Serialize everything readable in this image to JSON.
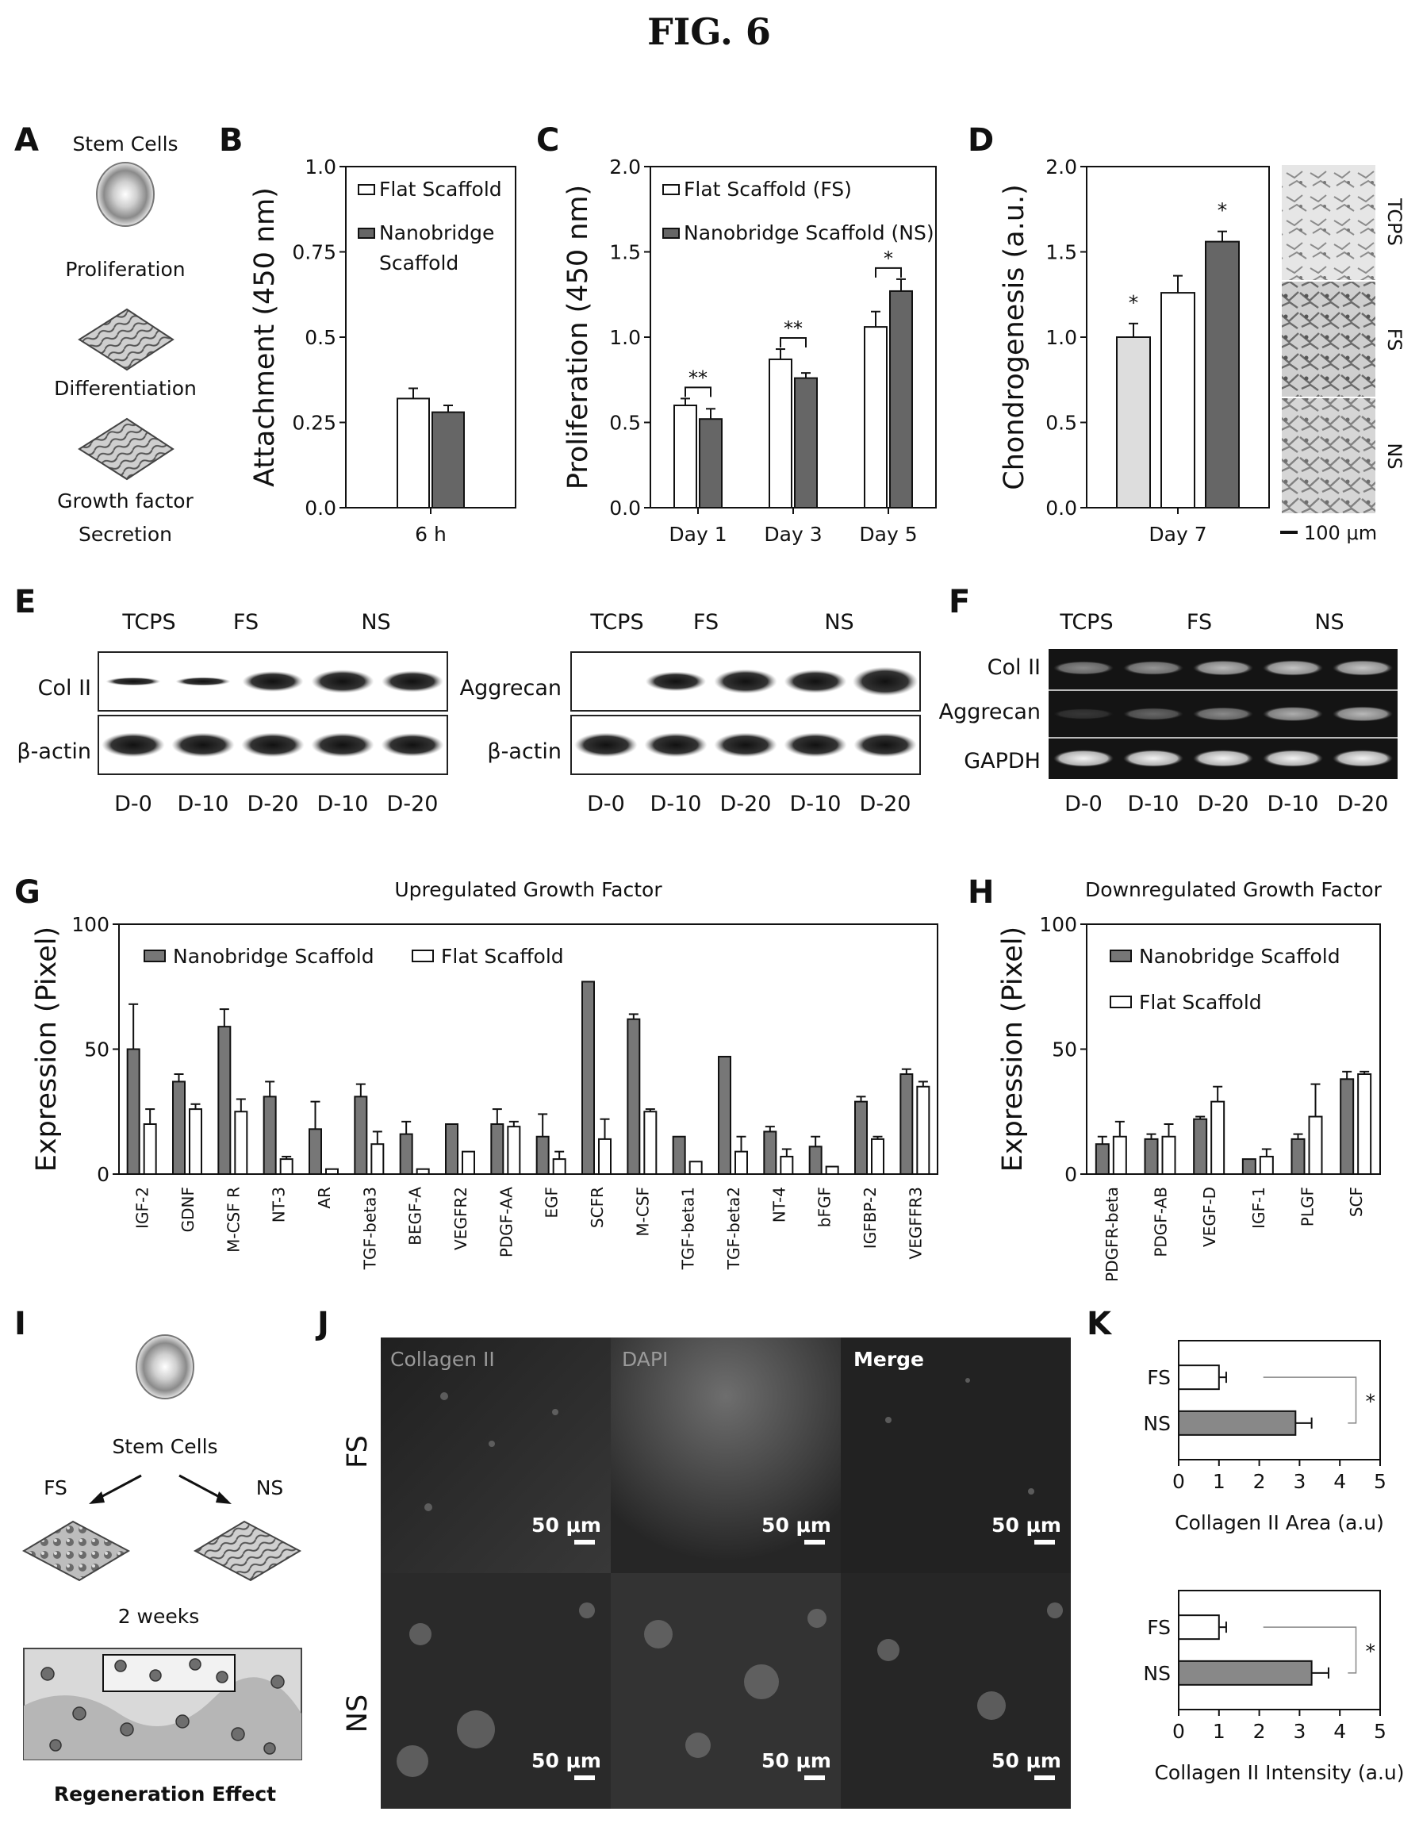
{
  "figure_title": "FIG. 6",
  "panels": {
    "A": {
      "letter": "A",
      "steps": [
        "Stem Cells",
        "Proliferation",
        "Differentiation",
        "Growth factor",
        "Secretion"
      ]
    },
    "E": {
      "letter": "E",
      "groups": [
        "TCPS",
        "FS",
        "NS"
      ],
      "rows_left": [
        "Col II",
        "β-actin"
      ],
      "rows_right": [
        "Aggrecan",
        "β-actin"
      ],
      "lanes": [
        "D-0",
        "D-10",
        "D-20",
        "D-10",
        "D-20"
      ]
    },
    "F": {
      "letter": "F",
      "groups": [
        "TCPS",
        "FS",
        "NS"
      ],
      "rows": [
        "Col II",
        "Aggrecan",
        "GAPDH"
      ],
      "lanes": [
        "D-0",
        "D-10",
        "D-20",
        "D-10",
        "D-20"
      ]
    },
    "I": {
      "letter": "I",
      "stem": "Stem Cells",
      "fs": "FS",
      "ns": "NS",
      "duration": "2 weeks",
      "caption": "Regeneration Effect"
    },
    "J": {
      "letter": "J",
      "channels": [
        "Collagen II",
        "DAPI",
        "Merge"
      ],
      "rows": [
        "FS",
        "NS"
      ],
      "scale": "50 μm"
    },
    "D_image": {
      "labels": [
        "TCPS",
        "FS",
        "NS"
      ],
      "scale": "100 μm"
    }
  },
  "chart_data": [
    {
      "id": "B",
      "letter": "B",
      "type": "bar",
      "categories": [
        "6 h"
      ],
      "series": [
        {
          "name": "Flat Scaffold",
          "values": [
            0.32
          ],
          "errors": [
            0.03
          ],
          "color": "#ffffff"
        },
        {
          "name": "Nanobridge Scaffold",
          "values": [
            0.28
          ],
          "errors": [
            0.02
          ],
          "color": "#666666"
        }
      ],
      "legend": [
        "Flat Scaffold",
        "Nanobridge",
        "Scaffold"
      ],
      "ylabel": "Attachment (450 nm)",
      "ylim": [
        0,
        1.0
      ],
      "yticks": [
        "0.0",
        "0.25",
        "0.5",
        "0.75",
        "1.0"
      ],
      "legend_position": "top-left"
    },
    {
      "id": "C",
      "letter": "C",
      "type": "bar",
      "categories": [
        "Day 1",
        "Day 3",
        "Day 5"
      ],
      "series": [
        {
          "name": "Flat Scaffold (FS)",
          "values": [
            0.6,
            0.87,
            1.06
          ],
          "errors": [
            0.04,
            0.06,
            0.09
          ],
          "color": "#ffffff"
        },
        {
          "name": "Nanobridge Scaffold (NS)",
          "values": [
            0.52,
            0.76,
            1.27
          ],
          "errors": [
            0.06,
            0.03,
            0.07
          ],
          "color": "#666666"
        }
      ],
      "significance": [
        "**",
        "**",
        "*"
      ],
      "ylabel": "Proliferation (450 nm)",
      "ylim": [
        0,
        2.0
      ],
      "yticks": [
        "0.0",
        "0.5",
        "1.0",
        "1.5",
        "2.0"
      ],
      "legend_position": "top-left"
    },
    {
      "id": "D",
      "letter": "D",
      "type": "bar",
      "categories": [
        "Day 7"
      ],
      "bars": [
        {
          "value": 1.0,
          "error": 0.08,
          "color": "#dddddd",
          "star": "*"
        },
        {
          "value": 1.26,
          "error": 0.1,
          "color": "#ffffff",
          "star": ""
        },
        {
          "value": 1.56,
          "error": 0.06,
          "color": "#666666",
          "star": "*"
        }
      ],
      "ylabel": "Chondrogenesis (a.u.)",
      "ylim": [
        0,
        2.0
      ],
      "yticks": [
        "0.0",
        "0.5",
        "1.0",
        "1.5",
        "2.0"
      ]
    },
    {
      "id": "G",
      "letter": "G",
      "type": "bar",
      "title": "Upregulated Growth Factor",
      "categories": [
        "IGF-2",
        "GDNF",
        "M-CSF R",
        "NT-3",
        "AR",
        "TGF-beta3",
        "BEGF-A",
        "VEGFR2",
        "PDGF-AA",
        "EGF",
        "SCFR",
        "M-CSF",
        "TGF-beta1",
        "TGF-beta2",
        "NT-4",
        "bFGF",
        "IGFBP-2",
        "VEGFFR3"
      ],
      "series": [
        {
          "name": "Nanobridge Scaffold",
          "values": [
            50,
            37,
            59,
            31,
            18,
            31,
            16,
            20,
            20,
            15,
            77,
            62,
            15,
            47,
            17,
            11,
            29,
            40
          ],
          "errors": [
            18,
            3,
            7,
            6,
            11,
            5,
            5,
            0,
            6,
            9,
            0,
            2,
            0,
            0,
            2,
            4,
            2,
            2
          ],
          "color": "#777777"
        },
        {
          "name": "Flat Scaffold",
          "values": [
            20,
            26,
            25,
            6,
            2,
            12,
            2,
            9,
            19,
            6,
            14,
            25,
            5,
            9,
            7,
            3,
            14,
            35
          ],
          "errors": [
            6,
            2,
            5,
            1,
            0,
            5,
            0,
            0,
            2,
            3,
            8,
            1,
            0,
            6,
            3,
            0,
            1,
            2
          ],
          "color": "#ffffff"
        }
      ],
      "ylabel": "Expression (Pixel)",
      "ylim": [
        0,
        100
      ],
      "yticks": [
        "0",
        "50",
        "100"
      ],
      "legend_position": "top-left"
    },
    {
      "id": "H",
      "letter": "H",
      "type": "bar",
      "title": "Downregulated Growth Factor",
      "categories": [
        "PDGFR-beta",
        "PDGF-AB",
        "VEGF-D",
        "IGF-1",
        "PLGF",
        "SCF"
      ],
      "series": [
        {
          "name": "Nanobridge Scaffold",
          "values": [
            12,
            14,
            22,
            6,
            14,
            38
          ],
          "errors": [
            3,
            2,
            1,
            0,
            2,
            3
          ],
          "color": "#777777"
        },
        {
          "name": "Flat Scaffold",
          "values": [
            15,
            15,
            29,
            7,
            23,
            40
          ],
          "errors": [
            6,
            5,
            6,
            3,
            13,
            1
          ],
          "color": "#ffffff"
        }
      ],
      "ylabel": "Expression (Pixel)",
      "ylim": [
        0,
        100
      ],
      "yticks": [
        "0",
        "50",
        "100"
      ],
      "legend_position": "top-left"
    },
    {
      "id": "K1",
      "letter": "K",
      "type": "bar",
      "orientation": "horizontal",
      "categories": [
        "FS",
        "NS"
      ],
      "values": [
        1.0,
        2.9
      ],
      "errors": [
        0.18,
        0.4
      ],
      "colors": [
        "#ffffff",
        "#888888"
      ],
      "xlabel": "Collagen II Area (a.u)",
      "xlim": [
        0,
        5
      ],
      "xticks": [
        "0",
        "1",
        "2",
        "3",
        "4",
        "5"
      ],
      "significance": "*"
    },
    {
      "id": "K2",
      "type": "bar",
      "orientation": "horizontal",
      "categories": [
        "FS",
        "NS"
      ],
      "values": [
        1.0,
        3.3
      ],
      "errors": [
        0.18,
        0.42
      ],
      "colors": [
        "#ffffff",
        "#888888"
      ],
      "xlabel": "Collagen II Intensity (a.u)",
      "xlim": [
        0,
        5
      ],
      "xticks": [
        "0",
        "1",
        "2",
        "3",
        "4",
        "5"
      ],
      "significance": "*"
    }
  ]
}
